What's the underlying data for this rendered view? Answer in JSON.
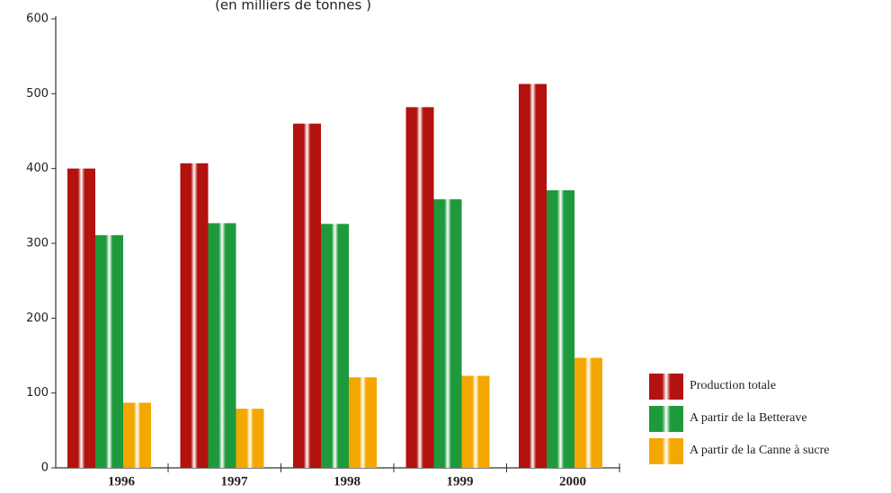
{
  "chart_data": {
    "type": "bar",
    "subtitle": "(en milliers de tonnes )",
    "categories": [
      "1996",
      "1997",
      "1998",
      "1999",
      "2000"
    ],
    "series": [
      {
        "name": "Production totale",
        "color": "#b3120e",
        "values": [
          400,
          407,
          460,
          482,
          513
        ]
      },
      {
        "name": "A partir de la Betterave",
        "color": "#1e9a3c",
        "values": [
          311,
          327,
          326,
          359,
          371
        ]
      },
      {
        "name": "A partir de la Canne à sucre",
        "color": "#f4a700",
        "values": [
          87,
          79,
          121,
          123,
          147
        ]
      }
    ],
    "ylim": [
      0,
      600
    ],
    "yticks": [
      0,
      100,
      200,
      300,
      400,
      500,
      600
    ],
    "grid": false,
    "legend": "right"
  }
}
